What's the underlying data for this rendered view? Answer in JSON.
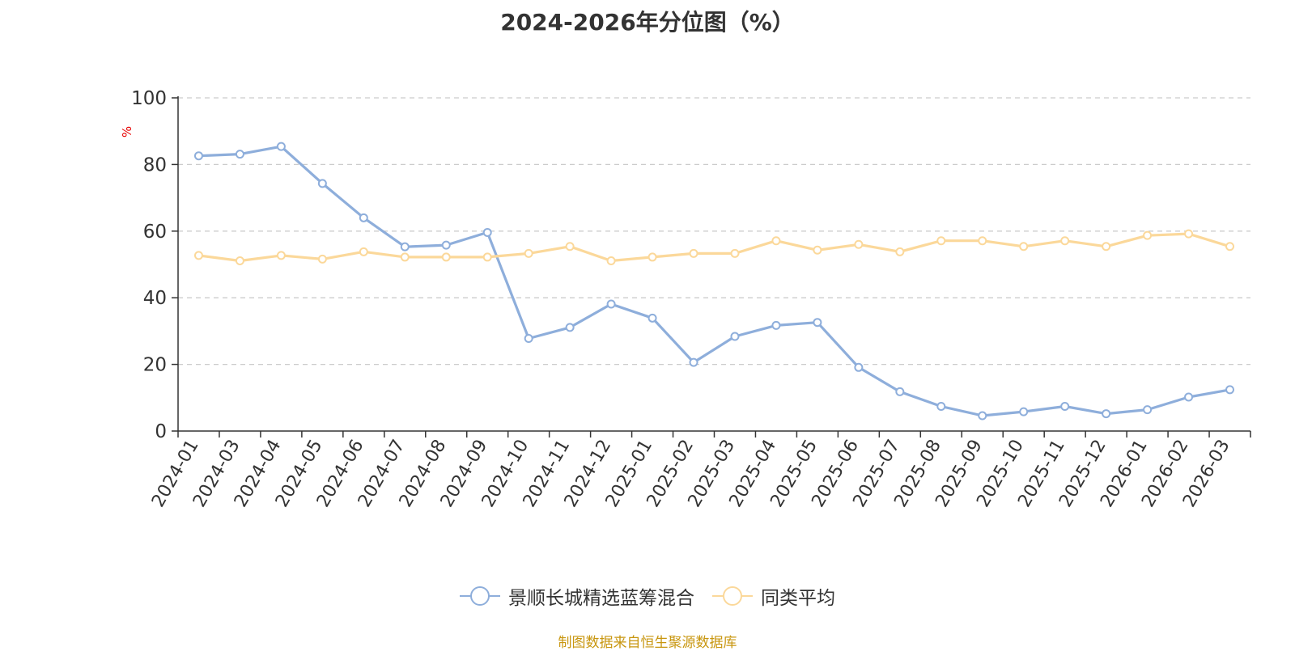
{
  "chart_data": {
    "type": "line",
    "title": "2024-2026年分位图（%）",
    "ylabel": "%",
    "ylim": [
      0,
      100
    ],
    "yticks": [
      0,
      20,
      40,
      60,
      80,
      100
    ],
    "grid": true,
    "legend_position": "bottom",
    "categories": [
      "2024-01",
      "2024-03",
      "2024-04",
      "2024-05",
      "2024-06",
      "2024-07",
      "2024-08",
      "2024-09",
      "2024-10",
      "2024-11",
      "2024-12",
      "2025-01",
      "2025-02",
      "2025-03",
      "2025-04",
      "2025-05",
      "2025-06",
      "2025-07",
      "2025-08",
      "2025-09",
      "2025-10",
      "2025-11",
      "2025-12",
      "2026-01",
      "2026-02",
      "2026-03"
    ],
    "series": [
      {
        "name": "景顺长城精选蓝筹混合",
        "color": "#8eaedb",
        "values": [
          82.6,
          83.1,
          85.4,
          74.3,
          64.0,
          55.3,
          55.8,
          59.6,
          27.8,
          31.1,
          38.1,
          33.9,
          20.6,
          28.4,
          31.7,
          32.6,
          19.1,
          11.8,
          7.4,
          4.6,
          5.8,
          7.4,
          5.2,
          6.4,
          10.2,
          12.4
        ]
      },
      {
        "name": "同类平均",
        "color": "#fbd89a",
        "values": [
          52.7,
          51.1,
          52.7,
          51.6,
          53.8,
          52.2,
          52.2,
          52.2,
          53.3,
          55.4,
          51.1,
          52.2,
          53.3,
          53.3,
          57.1,
          54.3,
          56.0,
          53.8,
          57.1,
          57.1,
          55.4,
          57.1,
          55.4,
          58.7,
          59.2,
          55.4
        ]
      }
    ]
  },
  "source_note": "制图数据来自恒生聚源数据库"
}
